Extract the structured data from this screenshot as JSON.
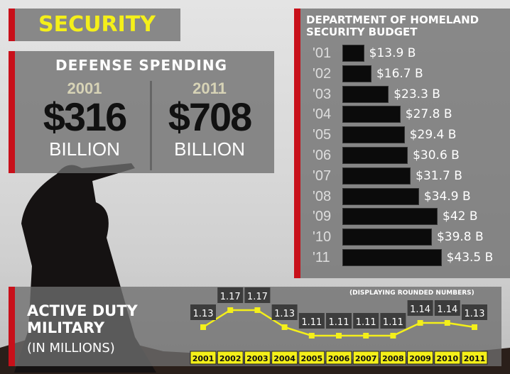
{
  "title": "SECURITY",
  "defense_spending": {
    "heading": "DEFENSE SPENDING",
    "items": [
      {
        "year": "2001",
        "amount": "$316",
        "unit": "BILLION"
      },
      {
        "year": "2011",
        "amount": "$708",
        "unit": "BILLION"
      }
    ]
  },
  "chart_data": [
    {
      "type": "bar",
      "orientation": "horizontal",
      "title": "DEPARTMENT OF HOMELAND SECURITY BUDGET",
      "categories": [
        "'01",
        "'02",
        "'03",
        "'04",
        "'05",
        "'06",
        "'07",
        "'08",
        "'09",
        "'10",
        "'11"
      ],
      "values": [
        13.9,
        16.7,
        23.3,
        27.8,
        29.4,
        30.6,
        31.7,
        34.9,
        42,
        39.8,
        43.5
      ],
      "labels": [
        "$13.9 B",
        "$16.7 B",
        "$23.3 B",
        "$27.8 B",
        "$29.4 B",
        "$30.6 B",
        "$31.7 B",
        "$34.9 B",
        "$42 B",
        "$39.8 B",
        "$43.5 B"
      ],
      "unit": "billion USD",
      "bar_color": "#0b0b0b"
    },
    {
      "type": "line",
      "title": "ACTIVE DUTY MILITARY",
      "subtitle": "(IN MILLIONS)",
      "note": "(DISPLAYING ROUNDED NUMBERS)",
      "categories": [
        "2001",
        "2002",
        "2003",
        "2004",
        "2005",
        "2006",
        "2007",
        "2008",
        "2009",
        "2010",
        "2011"
      ],
      "values": [
        1.13,
        1.17,
        1.17,
        1.13,
        1.11,
        1.11,
        1.11,
        1.11,
        1.14,
        1.14,
        1.13
      ],
      "labels": [
        "1.13",
        "1.17",
        "1.17",
        "1.13",
        "1.11",
        "1.11",
        "1.11",
        "1.11",
        "1.14",
        "1.14",
        "1.13"
      ],
      "line_color": "#f4ef1a"
    }
  ]
}
